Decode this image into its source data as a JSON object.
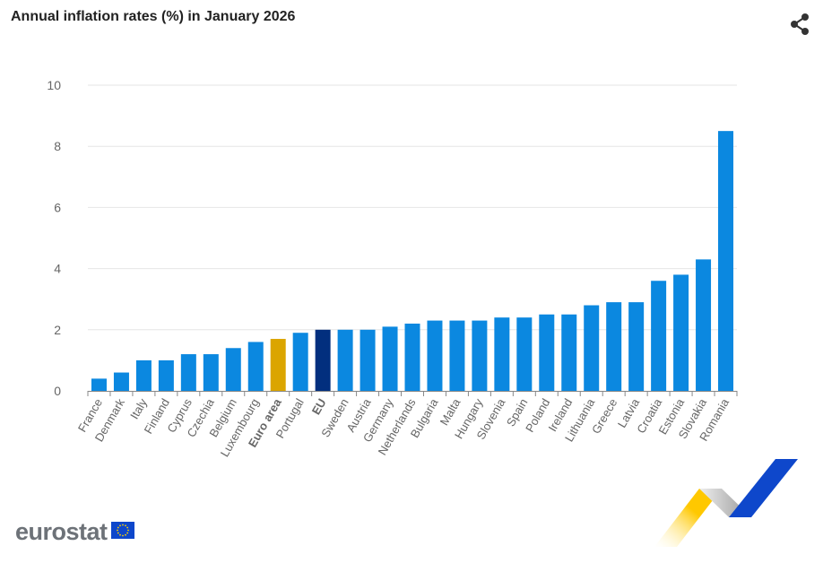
{
  "title": "Annual inflation rates (%) in January 2026",
  "logo_text": "eurostat",
  "colors": {
    "country": "#0b88e0",
    "euro_area": "#dba500",
    "eu": "#022f7e",
    "grid": "#e6e6e6",
    "axis_text": "#666666"
  },
  "chart_data": {
    "type": "bar",
    "title": "Annual inflation rates (%) in January 2026",
    "xlabel": "",
    "ylabel": "",
    "ylim": [
      0,
      10
    ],
    "yticks": [
      0,
      2,
      4,
      6,
      8,
      10
    ],
    "grid": true,
    "categories": [
      "France",
      "Denmark",
      "Italy",
      "Finland",
      "Cyprus",
      "Czechia",
      "Belgium",
      "Luxembourg",
      "Euro area",
      "Portugal",
      "EU",
      "Sweden",
      "Austria",
      "Germany",
      "Netherlands",
      "Bulgaria",
      "Malta",
      "Hungary",
      "Slovenia",
      "Spain",
      "Poland",
      "Ireland",
      "Lithuania",
      "Greece",
      "Latvia",
      "Croatia",
      "Estonia",
      "Slovakia",
      "Romania"
    ],
    "values": [
      0.4,
      0.6,
      1.0,
      1.0,
      1.2,
      1.2,
      1.4,
      1.6,
      1.7,
      1.9,
      2.0,
      2.0,
      2.0,
      2.1,
      2.2,
      2.3,
      2.3,
      2.3,
      2.4,
      2.4,
      2.5,
      2.5,
      2.8,
      2.9,
      2.9,
      3.6,
      3.8,
      4.3,
      8.5
    ],
    "highlighted": {
      "Euro area": "#dba500",
      "EU": "#022f7e"
    }
  }
}
